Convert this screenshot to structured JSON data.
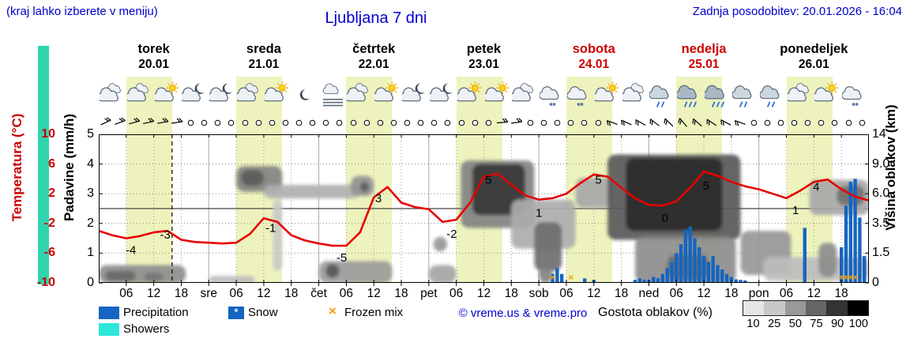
{
  "header": {
    "hint": "(kraj lahko izberete v meniju)",
    "title": "Ljubljana 7 dni",
    "updated": "Zadnja posodobitev: 20.01.2026 - 16:04"
  },
  "colors": {
    "blue_text": "#0000cc",
    "red": "#cc0000",
    "daylight_band": "#eef3bd",
    "precip": "#1565c0",
    "showers": "#2ee6da",
    "frozen": "#f5a000",
    "temp_line": "#e60000",
    "stripe": "#30d5b0",
    "cloud_scale": [
      "#e6e6e6",
      "#c8c8c8",
      "#999999",
      "#666666",
      "#333333",
      "#000000"
    ]
  },
  "days": [
    {
      "name": "torek",
      "date": "20.01",
      "weekend": false
    },
    {
      "name": "sreda",
      "date": "21.01",
      "weekend": false
    },
    {
      "name": "četrtek",
      "date": "22.01",
      "weekend": false
    },
    {
      "name": "petek",
      "date": "23.01",
      "weekend": false
    },
    {
      "name": "sobota",
      "date": "24.01",
      "weekend": true
    },
    {
      "name": "nedelja",
      "date": "25.01",
      "weekend": true
    },
    {
      "name": "ponedeljek",
      "date": "26.01",
      "weekend": false
    }
  ],
  "axes": {
    "temp": {
      "title": "Temperatura (°C)",
      "ticks": [
        "10",
        "6",
        "2",
        "-2",
        "-6",
        "-10"
      ]
    },
    "precip": {
      "title": "Padavine (mm/h)",
      "ticks": [
        "5",
        "4",
        "3",
        "2",
        "1",
        "0"
      ]
    },
    "cloud": {
      "title": "Višina oblakov (km)",
      "ticks": [
        "14",
        "9.0",
        "6.0",
        "3.5",
        "1.5",
        "0"
      ]
    },
    "x": {
      "hour_labels": [
        "06",
        "12",
        "18"
      ],
      "day_abbrevs": [
        "sre",
        "čet",
        "pet",
        "sob",
        "ned",
        "pon"
      ]
    }
  },
  "legend": {
    "precipitation": "Precipitation",
    "snow": "Snow",
    "frozen_mix": "Frozen mix",
    "showers": "Showers",
    "copyright": "© vreme.us & vreme.pro",
    "cloud_density_label": "Gostota oblakov (%)",
    "density_ticks": [
      "10",
      "25",
      "50",
      "75",
      "90",
      "100"
    ]
  },
  "chart_data": {
    "type": "meteogram",
    "title": "Ljubljana 7 dni",
    "x_unit": "hours from 20.01 00:00, 7 days (168 h)",
    "temp_axis_range": [
      10,
      -10
    ],
    "precip_axis_range": [
      0,
      5
    ],
    "cloud_height_km_stops": [
      0,
      1.5,
      3.5,
      6,
      9,
      14
    ],
    "now_h": 16,
    "zero_line_c": 0,
    "temperature": {
      "step_h": 3,
      "values": [
        -3.0,
        -3.6,
        -4.0,
        -3.7,
        -3.2,
        -3.0,
        -4.2,
        -4.5,
        -4.6,
        -4.7,
        -4.6,
        -3.4,
        -1.3,
        -1.8,
        -3.6,
        -4.3,
        -4.7,
        -5.0,
        -5.0,
        -3.2,
        1.5,
        2.9,
        0.8,
        0.2,
        -0.1,
        -1.8,
        -1.5,
        0.8,
        4.3,
        4.7,
        3.2,
        1.8,
        1.2,
        1.4,
        2.0,
        3.4,
        4.6,
        4.3,
        2.8,
        1.4,
        0.5,
        0.4,
        1.0,
        2.8,
        5.0,
        4.4,
        3.6,
        3.0,
        2.6,
        2.0,
        1.4,
        2.4,
        3.6,
        3.9,
        2.6,
        1.6,
        1.1
      ]
    },
    "temp_labels": [
      {
        "h": 7,
        "t": -5.6,
        "text": "-4"
      },
      {
        "h": 14.5,
        "t": -3.5,
        "text": "-3"
      },
      {
        "h": 37.5,
        "t": -2.6,
        "text": "-1"
      },
      {
        "h": 53,
        "t": -6.6,
        "text": "-5"
      },
      {
        "h": 61,
        "t": 1.4,
        "text": "3"
      },
      {
        "h": 77,
        "t": -3.4,
        "text": "-2"
      },
      {
        "h": 85,
        "t": 3.9,
        "text": "5"
      },
      {
        "h": 96,
        "t": -0.6,
        "text": "1"
      },
      {
        "h": 109,
        "t": 3.9,
        "text": "5"
      },
      {
        "h": 123.5,
        "t": -1.3,
        "text": "0"
      },
      {
        "h": 132.5,
        "t": 3.1,
        "text": "5"
      },
      {
        "h": 152,
        "t": -0.2,
        "text": "1"
      },
      {
        "h": 156.5,
        "t": 2.9,
        "text": "4"
      }
    ],
    "precip_bars": [
      {
        "h": 99,
        "mm": 0.3
      },
      {
        "h": 100,
        "mm": 0.5
      },
      {
        "h": 101,
        "mm": 0.3
      },
      {
        "h": 106,
        "mm": 0.15
      },
      {
        "h": 108,
        "mm": 0.1
      },
      {
        "h": 117,
        "mm": 0.1
      },
      {
        "h": 118,
        "mm": 0.15
      },
      {
        "h": 119,
        "mm": 0.1
      },
      {
        "h": 120,
        "mm": 0.1
      },
      {
        "h": 121,
        "mm": 0.2
      },
      {
        "h": 122,
        "mm": 0.15
      },
      {
        "h": 123,
        "mm": 0.3
      },
      {
        "h": 124,
        "mm": 0.5
      },
      {
        "h": 125,
        "mm": 0.7
      },
      {
        "h": 126,
        "mm": 1.0
      },
      {
        "h": 127,
        "mm": 1.3
      },
      {
        "h": 128,
        "mm": 1.8
      },
      {
        "h": 129,
        "mm": 1.9
      },
      {
        "h": 130,
        "mm": 1.5
      },
      {
        "h": 131,
        "mm": 1.2
      },
      {
        "h": 132,
        "mm": 0.9
      },
      {
        "h": 133,
        "mm": 0.7
      },
      {
        "h": 134,
        "mm": 0.9
      },
      {
        "h": 135,
        "mm": 0.6
      },
      {
        "h": 136,
        "mm": 0.45
      },
      {
        "h": 137,
        "mm": 0.3
      },
      {
        "h": 138,
        "mm": 0.2
      },
      {
        "h": 139,
        "mm": 0.12
      },
      {
        "h": 140,
        "mm": 0.1
      },
      {
        "h": 141,
        "mm": 0.08
      },
      {
        "h": 154,
        "mm": 1.85
      },
      {
        "h": 162,
        "mm": 1.2
      },
      {
        "h": 163,
        "mm": 2.6
      },
      {
        "h": 164,
        "mm": 3.4
      },
      {
        "h": 165,
        "mm": 3.5
      },
      {
        "h": 166,
        "mm": 2.2
      },
      {
        "h": 167,
        "mm": 0.9
      }
    ],
    "frozen_mix_markers": [
      99,
      103,
      162,
      163,
      164,
      165
    ],
    "snow_markers": [],
    "daylight_bands": [
      {
        "h0": 6,
        "h1": 16
      },
      {
        "h0": 30,
        "h1": 40
      },
      {
        "h0": 54,
        "h1": 64
      },
      {
        "h0": 78,
        "h1": 88
      },
      {
        "h0": 102,
        "h1": 112
      },
      {
        "h0": 126,
        "h1": 136
      },
      {
        "h0": 150,
        "h1": 160
      }
    ],
    "cloud_blobs": [
      {
        "h0": 0,
        "h1": 19,
        "k0": 0,
        "k1": 0.9,
        "s": 0.45
      },
      {
        "h0": 1.5,
        "h1": 8,
        "k0": 0.1,
        "k1": 0.6,
        "s": 0.62
      },
      {
        "h0": 10,
        "h1": 14,
        "k0": 0.1,
        "k1": 0.5,
        "s": 0.55
      },
      {
        "h0": 24,
        "h1": 34,
        "k0": 0,
        "k1": 0.35,
        "s": 0.22
      },
      {
        "h0": 30,
        "h1": 40,
        "k0": 6.2,
        "k1": 8.8,
        "s": 0.5
      },
      {
        "h0": 31,
        "h1": 36,
        "k0": 6.8,
        "k1": 8.4,
        "s": 0.68
      },
      {
        "h0": 36,
        "h1": 57,
        "k0": 5.6,
        "k1": 6.9,
        "s": 0.28
      },
      {
        "h0": 38,
        "h1": 40,
        "k0": 0.6,
        "k1": 5.5,
        "s": 0.16
      },
      {
        "h0": 48,
        "h1": 64,
        "k0": 0,
        "k1": 1.1,
        "s": 0.38
      },
      {
        "h0": 49.5,
        "h1": 52.5,
        "k0": 0.25,
        "k1": 0.95,
        "s": 0.7
      },
      {
        "h0": 55,
        "h1": 60,
        "k0": 5.8,
        "k1": 7.8,
        "s": 0.42
      },
      {
        "h0": 57,
        "h1": 59,
        "k0": 6.2,
        "k1": 7.2,
        "s": 0.66
      },
      {
        "h0": 72,
        "h1": 78,
        "k0": 0,
        "k1": 0.9,
        "s": 0.34
      },
      {
        "h0": 73,
        "h1": 76,
        "k0": 1.6,
        "k1": 2.6,
        "s": 0.4
      },
      {
        "h0": 79,
        "h1": 95,
        "k0": 3.2,
        "k1": 9.6,
        "s": 0.5
      },
      {
        "h0": 81.5,
        "h1": 93,
        "k0": 4.2,
        "k1": 9.0,
        "s": 0.85
      },
      {
        "h0": 90,
        "h1": 104,
        "k0": 1.8,
        "k1": 5.5,
        "s": 0.3
      },
      {
        "h0": 95,
        "h1": 101,
        "k0": 0.6,
        "k1": 3.6,
        "s": 0.6
      },
      {
        "h0": 96,
        "h1": 99,
        "k0": 0,
        "k1": 0.8,
        "s": 0.5
      },
      {
        "h0": 104,
        "h1": 112,
        "k0": 4.8,
        "k1": 7.6,
        "s": 0.32
      },
      {
        "h0": 111,
        "h1": 140,
        "k0": 2.4,
        "k1": 10.6,
        "s": 0.7
      },
      {
        "h0": 115,
        "h1": 136,
        "k0": 3.0,
        "k1": 10.0,
        "s": 0.92
      },
      {
        "h0": 117,
        "h1": 139,
        "k0": 0,
        "k1": 2.6,
        "s": 0.45
      },
      {
        "h0": 124,
        "h1": 133,
        "k0": 0.2,
        "k1": 1.4,
        "s": 0.6
      },
      {
        "h0": 140,
        "h1": 151,
        "k0": 0.4,
        "k1": 3.0,
        "s": 0.4
      },
      {
        "h0": 145,
        "h1": 168,
        "k0": 0.1,
        "k1": 1.3,
        "s": 0.22
      },
      {
        "h0": 155,
        "h1": 168,
        "k0": 4.2,
        "k1": 7.4,
        "s": 0.32
      },
      {
        "h0": 161,
        "h1": 167,
        "k0": 5.0,
        "k1": 6.8,
        "s": 0.58
      },
      {
        "h0": 157,
        "h1": 161,
        "k0": 0.3,
        "k1": 2.2,
        "s": 0.45
      }
    ],
    "weather_icons": [
      "cloud",
      "cloud",
      "sun-cloud",
      "moon-cloud",
      "moon-cloud",
      "cloud",
      "sun-cloud",
      "moon",
      "fog",
      "cloud",
      "sun-cloud",
      "moon-cloud",
      "moon-cloud",
      "sun-cloud",
      "sun-cloud",
      "cloud",
      "snow-cloud",
      "snow-cloud",
      "sun-cloud",
      "cloud",
      "rain-cloud",
      "rain-heavy",
      "rain-heavy",
      "rain-cloud",
      "rain-cloud",
      "cloud",
      "sun-cloud",
      "snow-cloud"
    ],
    "wind_3h": [
      "b-25",
      "b-20",
      "b-15",
      "b-12",
      "b-10",
      "b-8",
      "c",
      "c",
      "c",
      "c",
      "c",
      "c",
      "c",
      "c",
      "c",
      "c",
      "c",
      "c",
      "c",
      "c",
      "c",
      "c",
      "c",
      "c",
      "c",
      "c",
      "c",
      "c",
      "c",
      "b-5",
      "b-8",
      "c",
      "c",
      "c",
      "c",
      "c",
      "c",
      "b200",
      "b205",
      "b210",
      "b218",
      "b225",
      "b230",
      "b222",
      "b215",
      "b208",
      "b200",
      "c",
      "c",
      "c",
      "c",
      "c",
      "c",
      "c",
      "c",
      "c"
    ]
  }
}
